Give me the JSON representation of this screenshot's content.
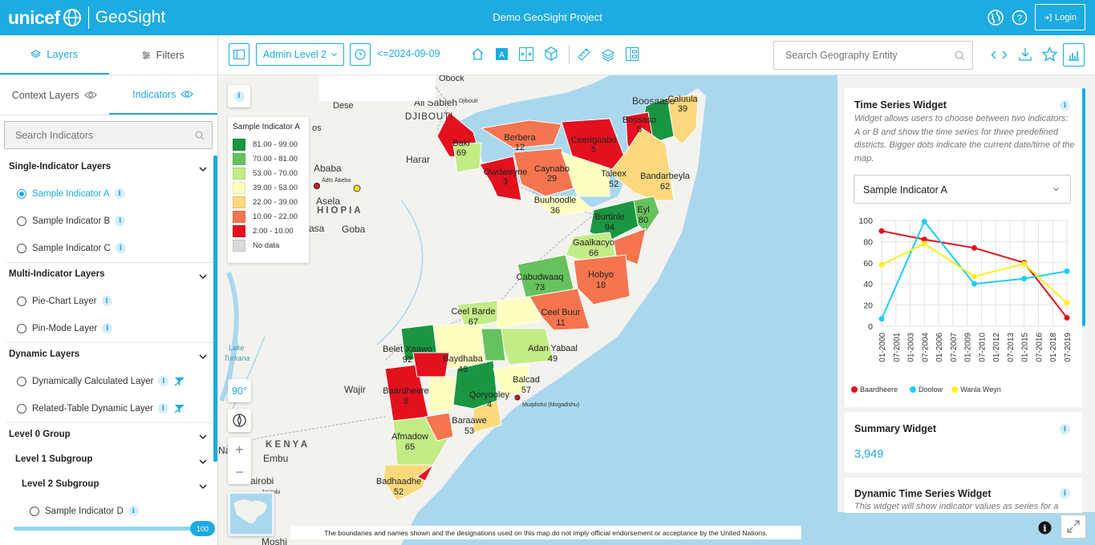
{
  "header": {
    "brand": "unicef",
    "app": "GeoSight",
    "project": "Demo GeoSight Project",
    "login": "Login"
  },
  "left": {
    "tabs": [
      {
        "label": "Layers",
        "active": true
      },
      {
        "label": "Filters"
      }
    ],
    "subtabs": [
      {
        "label": "Context Layers"
      },
      {
        "label": "Indicators",
        "active": true
      }
    ],
    "search_placeholder": "Search Indicators",
    "groups": {
      "single": "Single-Indicator Layers",
      "multi": "Multi-Indicator Layers",
      "dynamic": "Dynamic Layers",
      "level0": "Level 0 Group",
      "level1": "Level 1 Subgroup",
      "level2": "Level 2 Subgroup"
    },
    "items": {
      "a": "Sample Indicator A",
      "b": "Sample Indicator B",
      "c": "Sample Indicator C",
      "pie": "Pie-Chart Layer",
      "pin": "Pin-Mode Layer",
      "dyncalc": "Dynamically Calculated Layer",
      "related": "Related-Table Dynamic Layer",
      "d": "Sample Indicator D"
    },
    "slider_value": "100"
  },
  "toolbar": {
    "admin_level": "Admin Level 2",
    "date": "<=2024-09-09",
    "search_placeholder": "Search Geography Entity"
  },
  "legend": {
    "title": "Sample Indicator A",
    "rows": [
      {
        "label": "81.00 - 99.00",
        "color": "#1a9641"
      },
      {
        "label": "70.00 - 81.00",
        "color": "#66c25c"
      },
      {
        "label": "53.00 - 70.00",
        "color": "#c3ec86"
      },
      {
        "label": "39.00 - 53.00",
        "color": "#ffffbf"
      },
      {
        "label": "22.00 - 39.00",
        "color": "#fdd97e"
      },
      {
        "label": "10.00 - 22.00",
        "color": "#f5754f"
      },
      {
        "label": "2.00 - 10.00",
        "color": "#e3101e"
      },
      {
        "label": "No data",
        "color": "#d9d9d9"
      }
    ]
  },
  "map": {
    "bearing": "90°",
    "disclaimer": "The boundaries and names shown and the designations used on this map do not imply official endorsement or acceptance by the United Nations.",
    "basemap_labels": {
      "obock": "Obock",
      "dese": "Dese",
      "alisabieh": "Ali Sabieh",
      "djibouti": "DJIBOUTI",
      "djiboutismall": "Djibouti",
      "harar": "Harar",
      "addis": "Ababa",
      "addissmall": "Ādīs Ābeba",
      "asela": "Asela",
      "ethiopia": "HIOPIA",
      "goba": "Goba",
      "os": "os",
      "asa": "asa",
      "lake": "Lake",
      "turkana": "Turkana",
      "wajir": "Wajir",
      "kenya": "K E N Y A",
      "embu": "Embu",
      "nairobi": "airobi",
      "nairobismall": "Nairobi",
      "na": "Na",
      "moshi": "Moshi",
      "boosaaso": "Boosaaso",
      "mogadishu": "Muqdisho (Mogadishu)"
    },
    "districts": [
      {
        "name": "Caluula",
        "value": "39"
      },
      {
        "name": "Bossaso",
        "value": "5"
      },
      {
        "name": "Ceerigaabo",
        "value": "5"
      },
      {
        "name": "Berbera",
        "value": "12"
      },
      {
        "name": "Baki",
        "value": "69"
      },
      {
        "name": "Owdweyne",
        "value": "3"
      },
      {
        "name": "Caynabo",
        "value": "29"
      },
      {
        "name": "Taleex",
        "value": "52"
      },
      {
        "name": "Bandarbeyla",
        "value": "62"
      },
      {
        "name": "Buuhoodle",
        "value": "36"
      },
      {
        "name": "Eyl",
        "value": "80"
      },
      {
        "name": "Burtinle",
        "value": "94"
      },
      {
        "name": "Gaalkacyo",
        "value": "66"
      },
      {
        "name": "Cabudwaaq",
        "value": "73"
      },
      {
        "name": "Hobyo",
        "value": "18"
      },
      {
        "name": "Ceel Barde",
        "value": "67"
      },
      {
        "name": "Ceel Buur",
        "value": "11"
      },
      {
        "name": "Belet Xaawo",
        "value": "92"
      },
      {
        "name": "Baydhaba",
        "value": "46"
      },
      {
        "name": "Adan Yabaal",
        "value": "49"
      },
      {
        "name": "Baardheere",
        "value": "8"
      },
      {
        "name": "Balcad",
        "value": "57"
      },
      {
        "name": "Qoryooley",
        "value": "4"
      },
      {
        "name": "Baraawe",
        "value": "53"
      },
      {
        "name": "Afmadow",
        "value": "65"
      },
      {
        "name": "Badhaadhe",
        "value": "52"
      }
    ]
  },
  "widgets": {
    "ts": {
      "title": "Time Series Widget",
      "desc": "Widget allows users to choose between two indicators: A or B and show the time series for three predefined districts. Bigger dots indicate the current date/time of the map.",
      "select": "Sample Indicator A"
    },
    "summary": {
      "title": "Summary Widget",
      "value": "3,949"
    },
    "dts": {
      "title": "Dynamic Time Series Widget",
      "desc": "This widget will show indicator values as series for a"
    }
  },
  "chart_data": {
    "type": "line",
    "x": [
      "01-2000",
      "07-2001",
      "01-2003",
      "07-2004",
      "01-2006",
      "07-2007",
      "01-2009",
      "07-2010",
      "01-2012",
      "07-2013",
      "01-2015",
      "07-2016",
      "01-2018",
      "07-2019"
    ],
    "ylim": [
      0,
      100
    ],
    "yticks": [
      "0",
      "20",
      "40",
      "60",
      "80",
      "100"
    ],
    "series": [
      {
        "name": "Baardheere",
        "color": "#e3101e",
        "points": [
          [
            0,
            90
          ],
          [
            3,
            82
          ],
          [
            6.5,
            74
          ],
          [
            10,
            60
          ],
          [
            13,
            8
          ]
        ]
      },
      {
        "name": "Doolow",
        "color": "#1ecdf2",
        "points": [
          [
            0,
            7
          ],
          [
            3,
            99
          ],
          [
            6.5,
            40
          ],
          [
            10,
            45
          ],
          [
            13,
            52
          ]
        ]
      },
      {
        "name": "Wanla Weyn",
        "color": "#fff01e",
        "points": [
          [
            0,
            58
          ],
          [
            3,
            78
          ],
          [
            6.5,
            47
          ],
          [
            10,
            59
          ],
          [
            13,
            22
          ]
        ]
      }
    ]
  }
}
